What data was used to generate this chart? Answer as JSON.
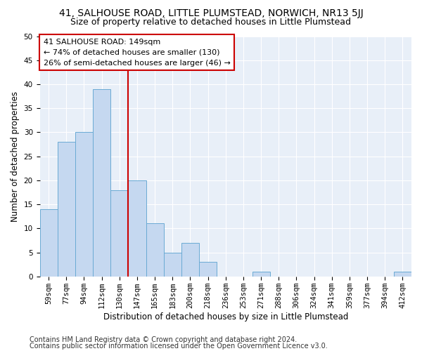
{
  "title1": "41, SALHOUSE ROAD, LITTLE PLUMSTEAD, NORWICH, NR13 5JJ",
  "title2": "Size of property relative to detached houses in Little Plumstead",
  "xlabel": "Distribution of detached houses by size in Little Plumstead",
  "ylabel": "Number of detached properties",
  "bar_color": "#c5d8f0",
  "bar_edge_color": "#6aaad4",
  "categories": [
    "59sqm",
    "77sqm",
    "94sqm",
    "112sqm",
    "130sqm",
    "147sqm",
    "165sqm",
    "183sqm",
    "200sqm",
    "218sqm",
    "236sqm",
    "253sqm",
    "271sqm",
    "288sqm",
    "306sqm",
    "324sqm",
    "341sqm",
    "359sqm",
    "377sqm",
    "394sqm",
    "412sqm"
  ],
  "values": [
    14,
    28,
    30,
    39,
    18,
    20,
    11,
    5,
    7,
    3,
    0,
    0,
    1,
    0,
    0,
    0,
    0,
    0,
    0,
    0,
    1
  ],
  "ylim": [
    0,
    50
  ],
  "yticks": [
    0,
    5,
    10,
    15,
    20,
    25,
    30,
    35,
    40,
    45,
    50
  ],
  "vline_x_index": 4.5,
  "vline_color": "#cc0000",
  "annotation_line1": "41 SALHOUSE ROAD: 149sqm",
  "annotation_line2": "← 74% of detached houses are smaller (130)",
  "annotation_line3": "26% of semi-detached houses are larger (46) →",
  "annotation_box_color": "#ffffff",
  "annotation_box_edge": "#cc0000",
  "footer1": "Contains HM Land Registry data © Crown copyright and database right 2024.",
  "footer2": "Contains public sector information licensed under the Open Government Licence v3.0.",
  "background_color": "#e8eff8",
  "title1_fontsize": 10,
  "title2_fontsize": 9,
  "xlabel_fontsize": 8.5,
  "ylabel_fontsize": 8.5,
  "tick_fontsize": 7.5,
  "annotation_fontsize": 8,
  "footer_fontsize": 7
}
